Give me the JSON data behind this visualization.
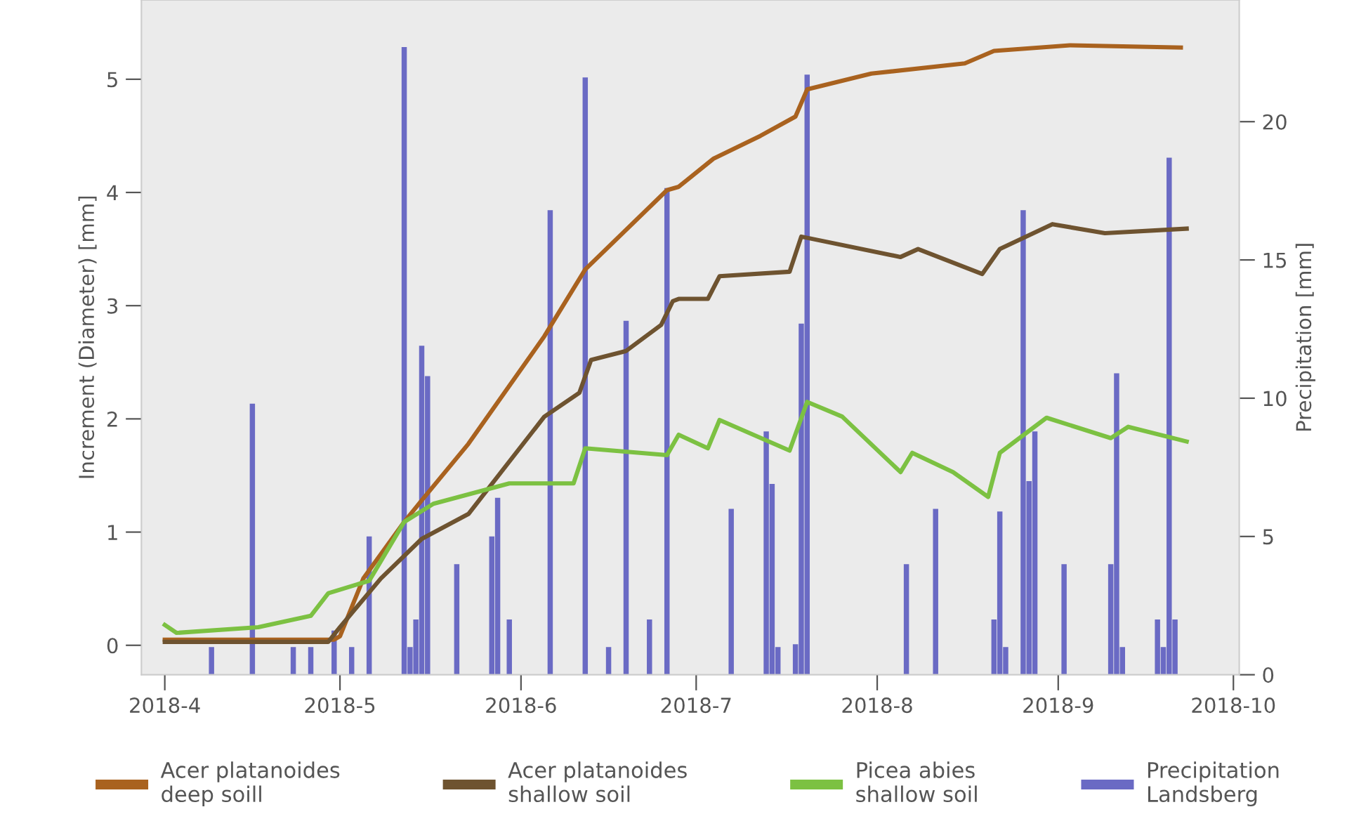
{
  "chart_data": {
    "type": "line",
    "ylabel": "Increment (Diameter) [mm]",
    "y2label": "Precipitation [mm]",
    "xlim": [
      "2018-03-28",
      "2018-10-02"
    ],
    "xticks": [
      {
        "value": "2018-04-01",
        "label": "2018-4"
      },
      {
        "value": "2018-05-01",
        "label": "2018-5"
      },
      {
        "value": "2018-06-01",
        "label": "2018-6"
      },
      {
        "value": "2018-07-01",
        "label": "2018-7"
      },
      {
        "value": "2018-08-01",
        "label": "2018-8"
      },
      {
        "value": "2018-09-01",
        "label": "2018-9"
      },
      {
        "value": "2018-10-01",
        "label": "2018-10"
      }
    ],
    "ylim": [
      -0.26,
      5.7
    ],
    "yticks": [
      0,
      1,
      2,
      3,
      4,
      5
    ],
    "y2lim": [
      0,
      24.4
    ],
    "y2ticks": [
      0,
      5,
      10,
      15,
      20
    ],
    "grid": false,
    "legend": "bottom",
    "series": [
      {
        "name": "Precipitation\nLandsberg",
        "type": "bar",
        "axis": "y2",
        "color": "#6a6ac4",
        "x": [
          "2018-04-09",
          "2018-04-16",
          "2018-04-23",
          "2018-04-26",
          "2018-04-30",
          "2018-05-03",
          "2018-05-06",
          "2018-05-12",
          "2018-05-13",
          "2018-05-14",
          "2018-05-15",
          "2018-05-16",
          "2018-05-21",
          "2018-05-27",
          "2018-05-28",
          "2018-05-30",
          "2018-06-06",
          "2018-06-12",
          "2018-06-16",
          "2018-06-19",
          "2018-06-23",
          "2018-06-26",
          "2018-07-07",
          "2018-07-13",
          "2018-07-14",
          "2018-07-15",
          "2018-07-18",
          "2018-07-19",
          "2018-07-20",
          "2018-08-06",
          "2018-08-11",
          "2018-08-21",
          "2018-08-22",
          "2018-08-23",
          "2018-08-26",
          "2018-08-27",
          "2018-08-28",
          "2018-09-02",
          "2018-09-10",
          "2018-09-11",
          "2018-09-12",
          "2018-09-18",
          "2018-09-19",
          "2018-09-20",
          "2018-09-21"
        ],
        "values": [
          1.0,
          9.8,
          1.0,
          1.0,
          1.6,
          1.0,
          5.0,
          22.7,
          1.0,
          2.0,
          11.9,
          10.8,
          4.0,
          5.0,
          6.4,
          2.0,
          16.8,
          21.6,
          1.0,
          12.8,
          2.0,
          17.6,
          6.0,
          8.8,
          6.9,
          1.0,
          1.1,
          12.7,
          21.7,
          4.0,
          6.0,
          2.0,
          5.9,
          1.0,
          16.8,
          7.0,
          8.8,
          4.0,
          4.0,
          10.9,
          1.0,
          2.0,
          1.0,
          18.7,
          2.0
        ]
      },
      {
        "name": "Acer platanoides\ndeep soill",
        "color": "#a9621f",
        "x": [
          "2018-04-01",
          "2018-04-30",
          "2018-05-01",
          "2018-05-05",
          "2018-05-12",
          "2018-05-15",
          "2018-05-23",
          "2018-06-05",
          "2018-06-12",
          "2018-06-26",
          "2018-06-28",
          "2018-07-04",
          "2018-07-12",
          "2018-07-18",
          "2018-07-20",
          "2018-07-31",
          "2018-08-16",
          "2018-08-21",
          "2018-09-03",
          "2018-09-22"
        ],
        "values": [
          0.05,
          0.05,
          0.08,
          0.59,
          1.09,
          1.28,
          1.78,
          2.73,
          3.32,
          4.02,
          4.05,
          4.3,
          4.5,
          4.67,
          4.91,
          5.05,
          5.14,
          5.25,
          5.3,
          5.28
        ]
      },
      {
        "name": "Acer platanoides\nshallow soil",
        "color": "#6e5330",
        "x": [
          "2018-04-01",
          "2018-04-29",
          "2018-05-01",
          "2018-05-08",
          "2018-05-15",
          "2018-05-23",
          "2018-06-05",
          "2018-06-11",
          "2018-06-13",
          "2018-06-19",
          "2018-06-25",
          "2018-06-27",
          "2018-06-28",
          "2018-07-03",
          "2018-07-05",
          "2018-07-17",
          "2018-07-19",
          "2018-08-05",
          "2018-08-08",
          "2018-08-19",
          "2018-08-22",
          "2018-08-31",
          "2018-09-09",
          "2018-09-23"
        ],
        "values": [
          0.03,
          0.03,
          0.16,
          0.59,
          0.94,
          1.16,
          2.02,
          2.23,
          2.52,
          2.6,
          2.83,
          3.04,
          3.06,
          3.06,
          3.26,
          3.3,
          3.61,
          3.43,
          3.5,
          3.28,
          3.5,
          3.72,
          3.64,
          3.68
        ]
      },
      {
        "name": "Picea abies\nshallow soil",
        "color": "#7cc142",
        "x": [
          "2018-04-01",
          "2018-04-03",
          "2018-04-17",
          "2018-04-26",
          "2018-04-29",
          "2018-05-06",
          "2018-05-12",
          "2018-05-17",
          "2018-05-30",
          "2018-06-10",
          "2018-06-12",
          "2018-06-26",
          "2018-06-28",
          "2018-07-03",
          "2018-07-05",
          "2018-07-17",
          "2018-07-20",
          "2018-07-26",
          "2018-08-05",
          "2018-08-07",
          "2018-08-14",
          "2018-08-20",
          "2018-08-22",
          "2018-08-30",
          "2018-09-10",
          "2018-09-13",
          "2018-09-23"
        ],
        "values": [
          0.18,
          0.11,
          0.16,
          0.26,
          0.46,
          0.57,
          1.09,
          1.25,
          1.43,
          1.43,
          1.74,
          1.68,
          1.86,
          1.74,
          1.99,
          1.72,
          2.15,
          2.02,
          1.53,
          1.7,
          1.53,
          1.31,
          1.7,
          2.01,
          1.83,
          1.93,
          1.8
        ]
      }
    ]
  }
}
